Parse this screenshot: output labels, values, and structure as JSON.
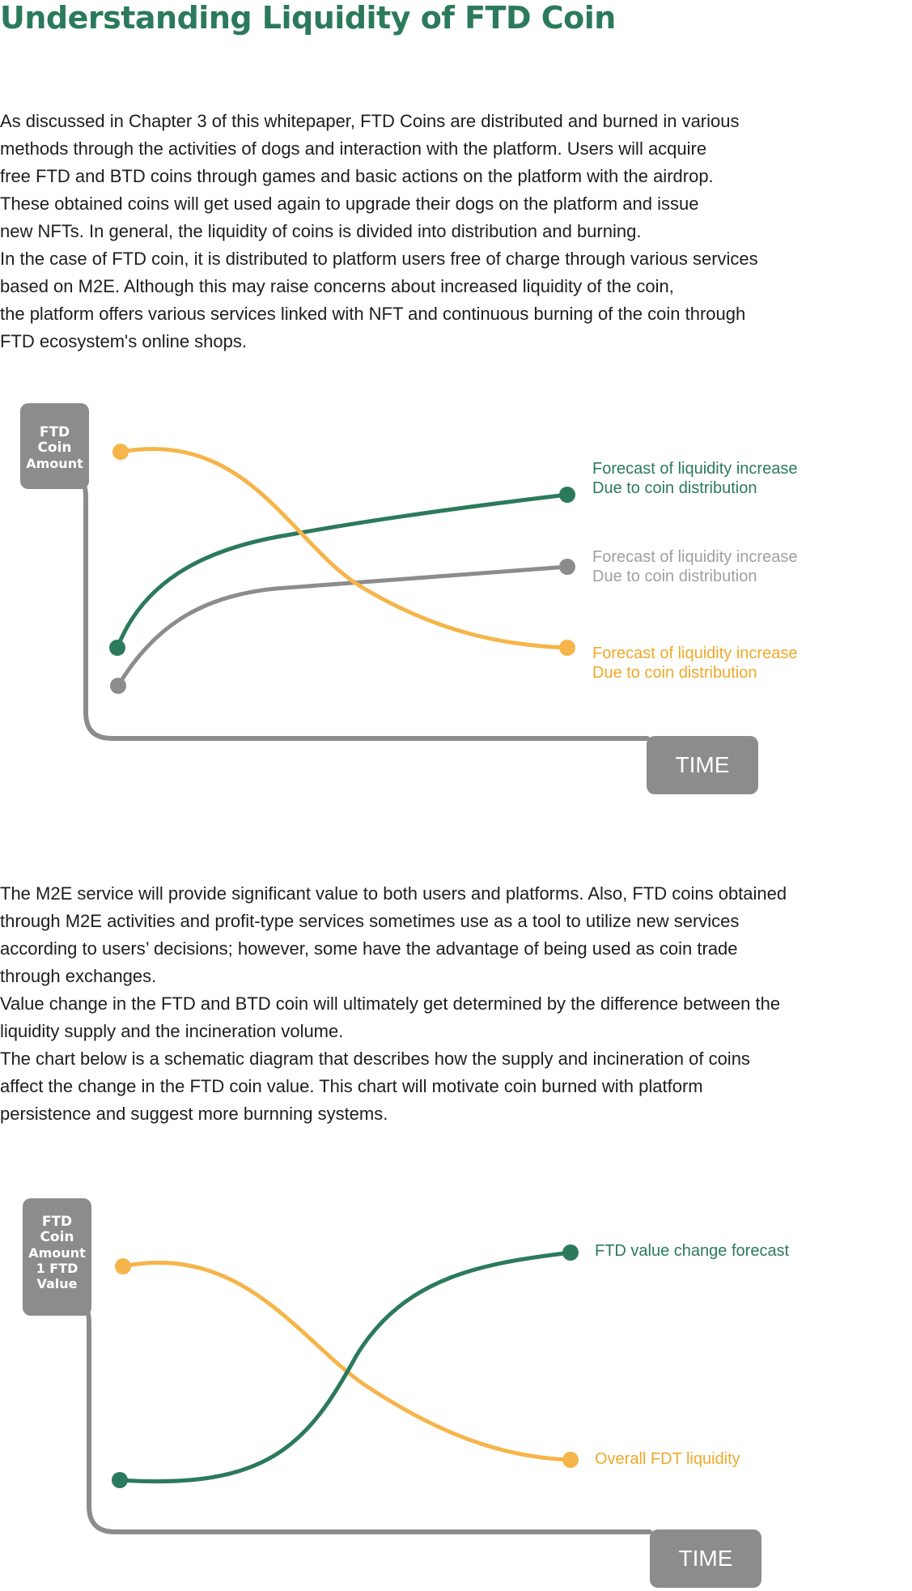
{
  "title": "Understanding Liquidity of FTD Coin",
  "paragraph_1": [
    "As discussed in Chapter 3 of this whitepaper, FTD Coins are distributed and burned in various",
    "methods through the activities of dogs and interaction with the platform. Users will acquire",
    "free FTD and BTD coins through games and basic actions on the platform with the airdrop.",
    "These obtained coins will get used again to upgrade their dogs on the platform and issue",
    "new NFTs. In general, the liquidity of coins is divided into distribution and burning.",
    "In the case of FTD coin, it is distributed to platform users free of charge through various services",
    "based on M2E. Although this may raise concerns about increased liquidity of the coin,",
    "the platform offers various services linked with NFT and continuous burning of the coin through",
    "FTD ecosystem's online shops."
  ],
  "diagram_1": {
    "y_axis_label": [
      "FTD",
      "Coin",
      "Amount"
    ],
    "x_axis_label": "TIME",
    "series": [
      {
        "label": [
          "Forecast of liquidity increase",
          "Due to coin distribution"
        ],
        "color": "#2b7a5b",
        "direction": "rising"
      },
      {
        "label": [
          "Forecast of liquidity increase",
          "Due to coin distribution"
        ],
        "color": "#8c8c8c",
        "direction": "rising"
      },
      {
        "label": [
          "Forecast of liquidity increase",
          "Due to coin distribution"
        ],
        "color": "#f5b54a",
        "direction": "falling"
      }
    ]
  },
  "paragraph_2": [
    "The M2E service will provide significant value to both users and platforms. Also, FTD coins obtained",
    "through M2E activities and profit-type services sometimes use as a tool to utilize new services",
    "according to users’ decisions; however, some have the advantage of being used as coin trade",
    "through exchanges.",
    "Value change in the FTD and BTD coin will ultimately get determined by the difference between the",
    "liquidity supply and the incineration volume.",
    "The chart below is a schematic diagram that describes how the supply and incineration of coins",
    "affect the change in the FTD coin value. This chart will motivate coin burned with platform",
    "persistence and suggest more burnning systems."
  ],
  "diagram_2": {
    "y_axis_label": [
      "FTD",
      "Coin",
      "Amount",
      "1 FTD",
      "Value"
    ],
    "x_axis_label": "TIME",
    "series": [
      {
        "label": "FTD value change forecast",
        "color": "#2b7a5b",
        "direction": "rising"
      },
      {
        "label": "Overall FDT liquidity",
        "color": "#f5b54a",
        "direction": "falling"
      }
    ]
  }
}
